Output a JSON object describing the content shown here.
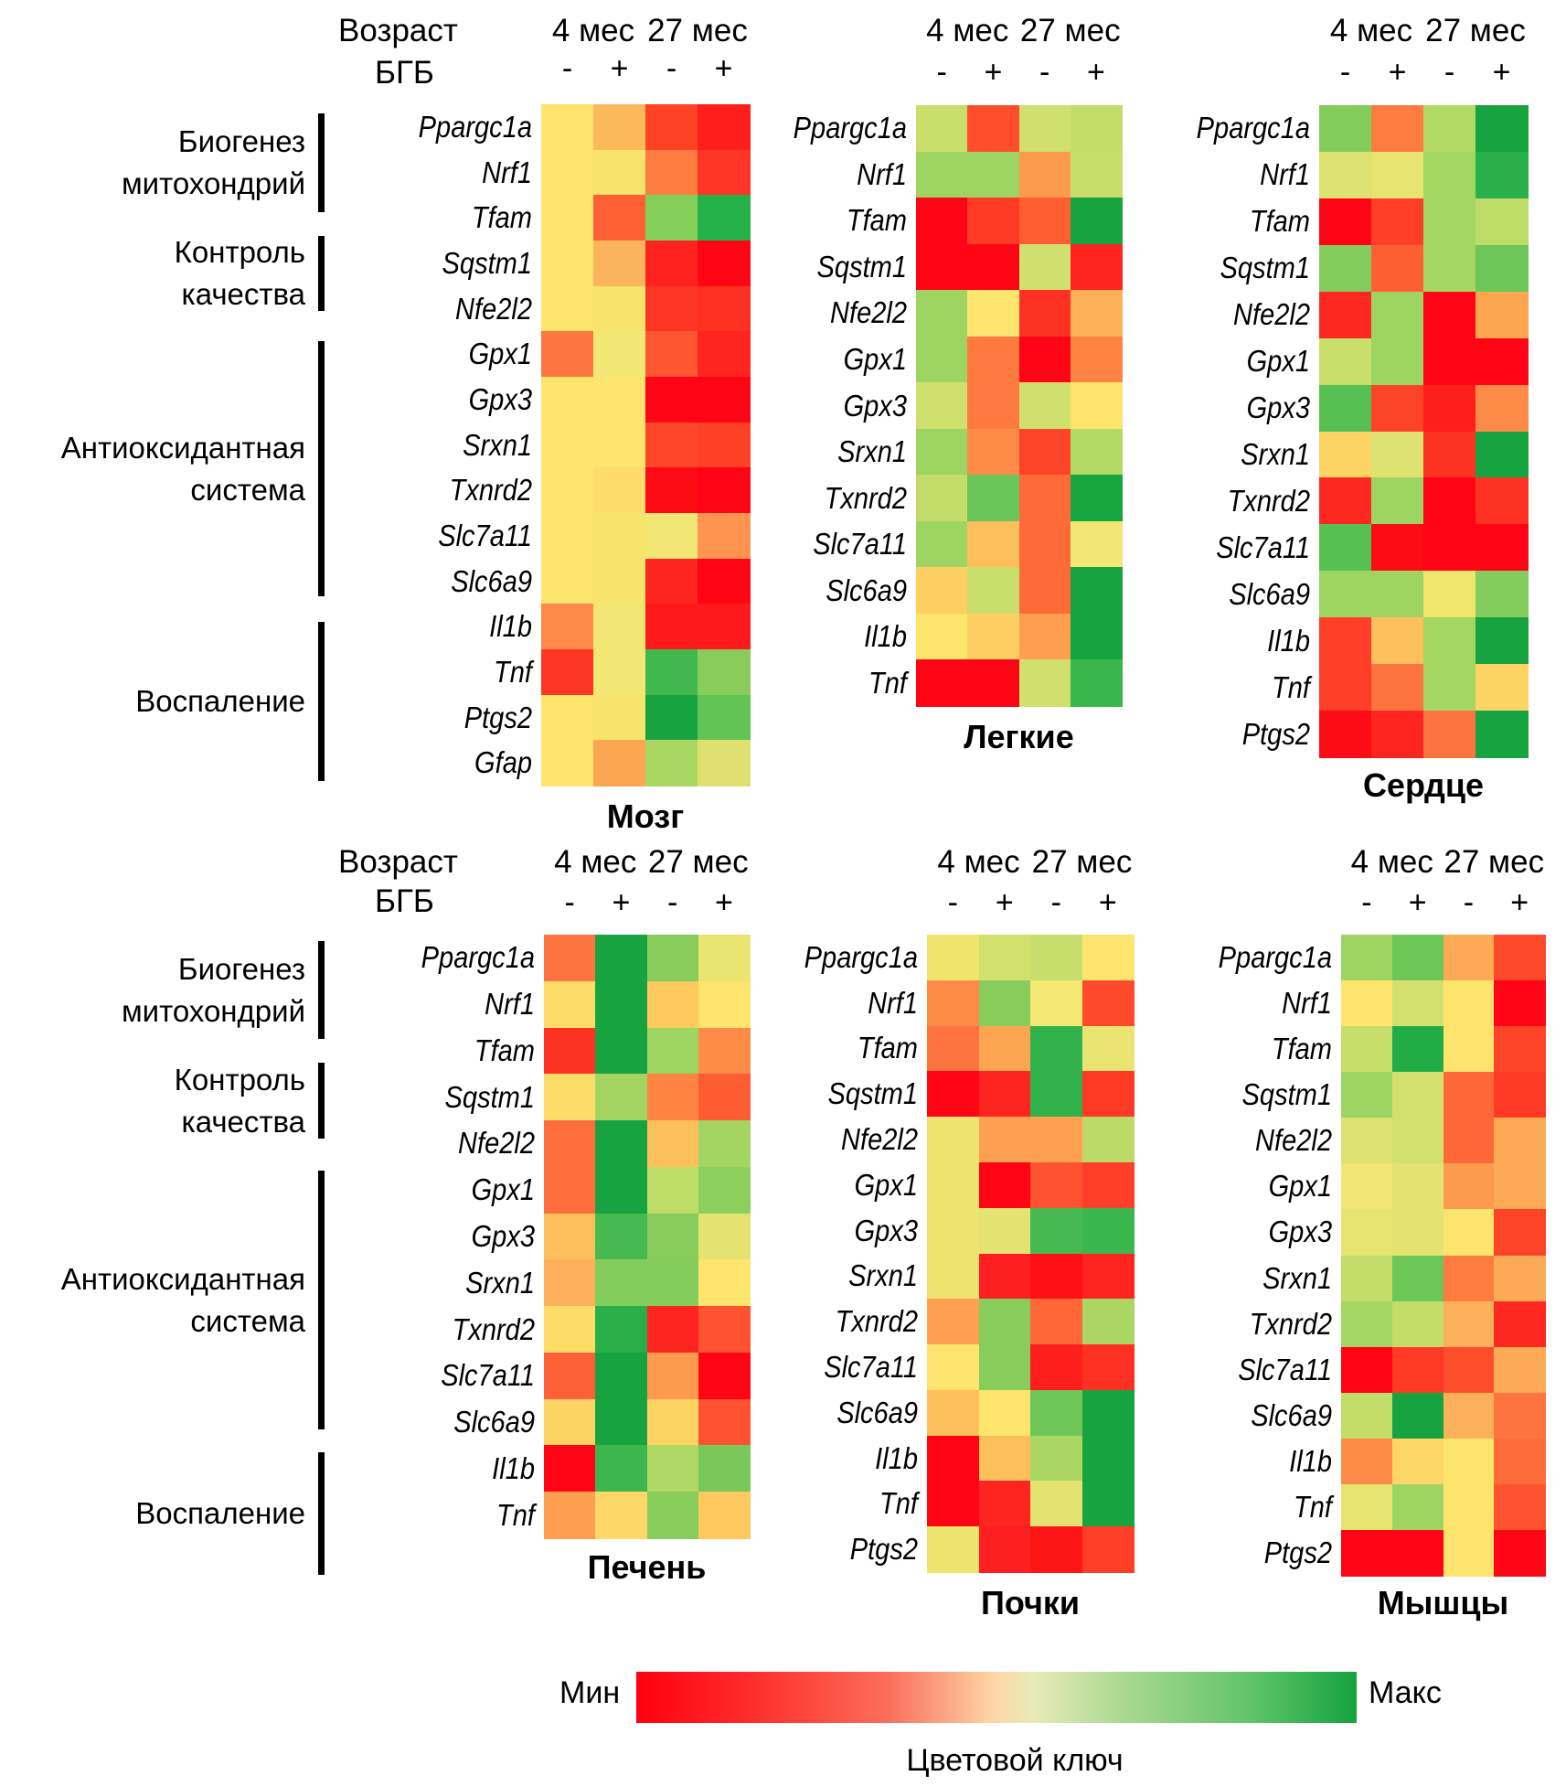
{
  "chart_data": {
    "type": "heatmap",
    "title": "",
    "header_labels": {
      "age": "Возраст",
      "treatment": "БГБ"
    },
    "column_groups": [
      "4 мес",
      "27 мес"
    ],
    "columns": [
      "-",
      "+",
      "-",
      "+"
    ],
    "color_scale": {
      "min_label": "Мин",
      "max_label": "Макс",
      "caption": "Цветовой ключ",
      "min_color": "#ff0010",
      "mid_color": "#fde8b0",
      "max_color": "#15a340"
    },
    "gene_groups_top": [
      {
        "label_lines": [
          "Биогенез",
          "митохондрий"
        ]
      },
      {
        "label_lines": [
          "Контроль",
          "качества"
        ]
      },
      {
        "label_lines": [
          "Антиоксидантная",
          "система"
        ]
      },
      {
        "label_lines": [
          "Воспаление"
        ]
      }
    ],
    "gene_groups_bottom": [
      {
        "label_lines": [
          "Биогенез",
          "митохондрий"
        ]
      },
      {
        "label_lines": [
          "Контроль",
          "качества"
        ]
      },
      {
        "label_lines": [
          "Антиоксидантная",
          "система"
        ]
      },
      {
        "label_lines": [
          "Воспаление"
        ]
      }
    ],
    "panels": [
      {
        "id": "brain",
        "title": "Мозг",
        "genes": [
          "Ppargc1a",
          "Nrf1",
          "Tfam",
          "Sqstm1",
          "Nfe2l2",
          "Gpx1",
          "Gpx3",
          "Srxn1",
          "Txnrd2",
          "Slc7a11",
          "Slc6a9",
          "Il1b",
          "Tnf",
          "Ptgs2",
          "Gfap"
        ],
        "cells": [
          [
            "#fde46c",
            "#fcb95c",
            "#fe4226",
            "#fe1e1c"
          ],
          [
            "#fde46c",
            "#f6e46c",
            "#fe7c40",
            "#fe3424"
          ],
          [
            "#fde46c",
            "#fe5f34",
            "#86ce5a",
            "#25b04a"
          ],
          [
            "#fde46c",
            "#fcb45c",
            "#fe221e",
            "#fe0414"
          ],
          [
            "#fde46c",
            "#f6e46c",
            "#fe3424",
            "#fe3020"
          ],
          [
            "#fd7640",
            "#f2e674",
            "#fe5630",
            "#fe2420"
          ],
          [
            "#fde46c",
            "#fde46c",
            "#fe0414",
            "#fe0414"
          ],
          [
            "#fde46c",
            "#fde46c",
            "#fe4628",
            "#fe4026"
          ],
          [
            "#fde46c",
            "#fddc6c",
            "#fe0a14",
            "#fe0414"
          ],
          [
            "#fde46c",
            "#f6e46c",
            "#f2e674",
            "#fe9450"
          ],
          [
            "#fde46c",
            "#f6e46c",
            "#fe2420",
            "#fe0414"
          ],
          [
            "#fd8a48",
            "#f2e674",
            "#fe1a1a",
            "#fe1a1a"
          ],
          [
            "#fe3624",
            "#f2e674",
            "#40b84e",
            "#8acc5c"
          ],
          [
            "#fde46c",
            "#f6e46c",
            "#17a340",
            "#62c455"
          ],
          [
            "#fde46c",
            "#fda652",
            "#aad662",
            "#e0e070"
          ]
        ]
      },
      {
        "id": "lungs",
        "title": "Легкие",
        "genes": [
          "Ppargc1a",
          "Nrf1",
          "Tfam",
          "Sqstm1",
          "Nfe2l2",
          "Gpx1",
          "Gpx3",
          "Srxn1",
          "Txnrd2",
          "Slc7a11",
          "Slc6a9",
          "Il1b",
          "Tnf"
        ],
        "cells": [
          [
            "#cade6c",
            "#fe4e2c",
            "#d0e06e",
            "#c4dc6a"
          ],
          [
            "#9ed462",
            "#9ed462",
            "#fe9a4c",
            "#c8de6c"
          ],
          [
            "#fe0414",
            "#fe3a24",
            "#fe5e32",
            "#17a340"
          ],
          [
            "#fe0414",
            "#fe0414",
            "#d0e06e",
            "#fe2420"
          ],
          [
            "#9ed462",
            "#fde46c",
            "#fe3222",
            "#fdb058"
          ],
          [
            "#9ed462",
            "#fe7a40",
            "#fe0414",
            "#fe8444"
          ],
          [
            "#d0e06e",
            "#fe7a40",
            "#d0e06e",
            "#fde46c"
          ],
          [
            "#9ed462",
            "#fe8c48",
            "#fe4428",
            "#b4da66"
          ],
          [
            "#c4dc6a",
            "#6ac658",
            "#fe6a38",
            "#18a640"
          ],
          [
            "#9ed462",
            "#fdbe5c",
            "#fe6a38",
            "#f2e674"
          ],
          [
            "#fdce62",
            "#cade6c",
            "#fe6a38",
            "#17a340"
          ],
          [
            "#fde46c",
            "#fdce62",
            "#fe9e4e",
            "#17a340"
          ],
          [
            "#fe0414",
            "#fe0414",
            "#d0e06e",
            "#3ab64c"
          ]
        ]
      },
      {
        "id": "heart",
        "title": "Сердце",
        "genes": [
          "Ppargc1a",
          "Nrf1",
          "Tfam",
          "Sqstm1",
          "Nfe2l2",
          "Gpx1",
          "Gpx3",
          "Srxn1",
          "Txnrd2",
          "Slc7a11",
          "Slc6a9",
          "Il1b",
          "Tnf",
          "Ptgs2"
        ],
        "cells": [
          [
            "#84cc5c",
            "#fe7c40",
            "#b4da66",
            "#17a340"
          ],
          [
            "#dee270",
            "#e8e470",
            "#a4d662",
            "#2ab04a"
          ],
          [
            "#fe0414",
            "#fe3e26",
            "#a4d662",
            "#bedc68"
          ],
          [
            "#84cc5c",
            "#fe5e34",
            "#a4d662",
            "#6cc658"
          ],
          [
            "#fe2820",
            "#9ed462",
            "#fe0414",
            "#fda652"
          ],
          [
            "#cade6c",
            "#9ed462",
            "#fe0414",
            "#fe0414"
          ],
          [
            "#56c052",
            "#fe4428",
            "#fe1e1c",
            "#fe8a48"
          ],
          [
            "#fdd464",
            "#dee270",
            "#fe3222",
            "#17a340"
          ],
          [
            "#fe2820",
            "#9ed462",
            "#fe0414",
            "#fe3222"
          ],
          [
            "#56c052",
            "#fe0c16",
            "#fe0414",
            "#fe0414"
          ],
          [
            "#9ed462",
            "#9ed462",
            "#eee66e",
            "#84cc5c"
          ],
          [
            "#fe3e26",
            "#fdbe5c",
            "#a4d662",
            "#17a340"
          ],
          [
            "#fe3e26",
            "#fe7440",
            "#a4d662",
            "#fdd464"
          ],
          [
            "#fe0c16",
            "#fe2420",
            "#fe7440",
            "#17a340"
          ]
        ]
      },
      {
        "id": "liver",
        "title": "Печень",
        "genes": [
          "Ppargc1a",
          "Nrf1",
          "Tfam",
          "Sqstm1",
          "Nfe2l2",
          "Gpx1",
          "Gpx3",
          "Srxn1",
          "Txnrd2",
          "Slc7a11",
          "Slc6a9",
          "Il1b",
          "Tnf"
        ],
        "cells": [
          [
            "#fe7440",
            "#17a340",
            "#88cc5c",
            "#eae470"
          ],
          [
            "#fddc68",
            "#17a340",
            "#fdc85e",
            "#fde46c"
          ],
          [
            "#fe3222",
            "#17a340",
            "#9ed462",
            "#fe8c48"
          ],
          [
            "#fddc68",
            "#a4d462",
            "#fe8444",
            "#fe5c32"
          ],
          [
            "#fe6e3c",
            "#17a340",
            "#fdbe5c",
            "#a4d462"
          ],
          [
            "#fe6e3c",
            "#17a340",
            "#bedc68",
            "#8ccf5c"
          ],
          [
            "#fdbe5c",
            "#46ba50",
            "#88cc5c",
            "#e4e270"
          ],
          [
            "#fdb05a",
            "#84cc5c",
            "#84cc5c",
            "#fde46c"
          ],
          [
            "#fddc68",
            "#2aae48",
            "#fe2420",
            "#fe5230"
          ],
          [
            "#fe6038",
            "#17a340",
            "#fe9a4e",
            "#fe0414"
          ],
          [
            "#fdd464",
            "#17a340",
            "#fdd464",
            "#fe5230"
          ],
          [
            "#fe0414",
            "#3eb64e",
            "#b0d864",
            "#7ac85a"
          ],
          [
            "#fd9e50",
            "#fdd868",
            "#88cc5c",
            "#fdc85e"
          ]
        ]
      },
      {
        "id": "kidneys",
        "title": "Почки",
        "genes": [
          "Ppargc1a",
          "Nrf1",
          "Tfam",
          "Sqstm1",
          "Nfe2l2",
          "Gpx1",
          "Gpx3",
          "Srxn1",
          "Txnrd2",
          "Slc7a11",
          "Slc6a9",
          "Il1b",
          "Tnf",
          "Ptgs2"
        ],
        "cells": [
          [
            "#f0e46e",
            "#d2e06e",
            "#c8de6c",
            "#fde46c"
          ],
          [
            "#fe8a48",
            "#88cc5c",
            "#f6e874",
            "#fe4a2a"
          ],
          [
            "#fe7440",
            "#fda652",
            "#32b24a",
            "#ebe472"
          ],
          [
            "#fe0414",
            "#fe2420",
            "#32b24a",
            "#fe3a24"
          ],
          [
            "#ede470",
            "#fda052",
            "#fda052",
            "#bcda68"
          ],
          [
            "#ede470",
            "#fe0414",
            "#fe5230",
            "#fe3e26"
          ],
          [
            "#ede470",
            "#e4e270",
            "#46ba50",
            "#3ab64c"
          ],
          [
            "#ede470",
            "#fe2020",
            "#fe1016",
            "#fe2420"
          ],
          [
            "#fda052",
            "#88cc5c",
            "#fe6838",
            "#acd664"
          ],
          [
            "#fde46c",
            "#88cc5c",
            "#fe1e1c",
            "#fe3022"
          ],
          [
            "#fdbe5c",
            "#fde46c",
            "#6ec658",
            "#17a340"
          ],
          [
            "#fe0414",
            "#fdbe5c",
            "#aad664",
            "#17a340"
          ],
          [
            "#fe0414",
            "#fe2420",
            "#e4e270",
            "#17a340"
          ],
          [
            "#ede470",
            "#fe2020",
            "#fe1616",
            "#fe3e26"
          ]
        ]
      },
      {
        "id": "muscles",
        "title": "Мышцы",
        "genes": [
          "Ppargc1a",
          "Nrf1",
          "Tfam",
          "Sqstm1",
          "Nfe2l2",
          "Gpx1",
          "Gpx3",
          "Srxn1",
          "Txnrd2",
          "Slc7a11",
          "Slc6a9",
          "Il1b",
          "Tnf",
          "Ptgs2"
        ],
        "cells": [
          [
            "#9ed462",
            "#6cc658",
            "#fdaa56",
            "#fe4a2a"
          ],
          [
            "#fde46c",
            "#d4e06e",
            "#fde46c",
            "#fe0414"
          ],
          [
            "#c8de6c",
            "#22ac48",
            "#fde46c",
            "#fe4428"
          ],
          [
            "#9ed462",
            "#d4e06e",
            "#fe6838",
            "#fe3a24"
          ],
          [
            "#dee270",
            "#d4e06e",
            "#fe6838",
            "#fdaa56"
          ],
          [
            "#f2e674",
            "#e4e270",
            "#fe9a4e",
            "#fdaa56"
          ],
          [
            "#e8e470",
            "#e4e270",
            "#fde46c",
            "#fe4428"
          ],
          [
            "#c4dc6a",
            "#6cc658",
            "#fe7c40",
            "#fdaa56"
          ],
          [
            "#a4d664",
            "#c4dc6a",
            "#fdb05a",
            "#fe2820"
          ],
          [
            "#fe0414",
            "#fe3a24",
            "#fe4e2c",
            "#fdaa56"
          ],
          [
            "#c4dc6a",
            "#17a340",
            "#fdb05a",
            "#fe743e"
          ],
          [
            "#fe8a48",
            "#fdd868",
            "#fde46c",
            "#fe6c3a"
          ],
          [
            "#e8e470",
            "#9ed462",
            "#fde46c",
            "#fe5230"
          ],
          [
            "#fe0414",
            "#fe0414",
            "#fde46c",
            "#fe0414"
          ]
        ]
      }
    ]
  }
}
